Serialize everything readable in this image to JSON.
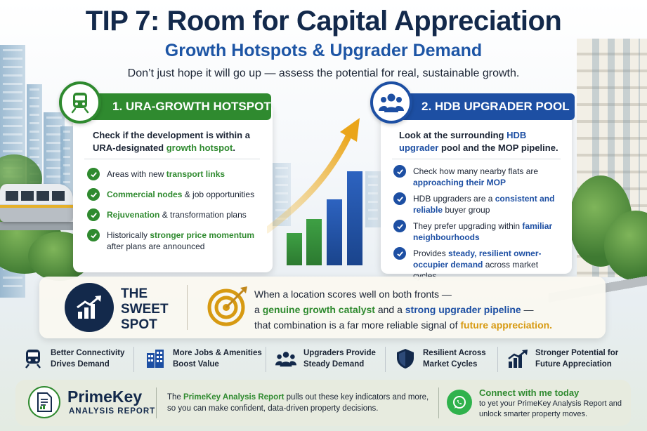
{
  "header": {
    "title": "TIP 7: Room for Capital Appreciation",
    "subtitle": "Growth Hotspots & Upgrader Demand",
    "tagline": "Don’t just hope it will go up — assess the potential for real, sustainable growth."
  },
  "left_card": {
    "icon": "train-icon",
    "heading": "1. URA-GROWTH HOTSPOT",
    "lead_plain": "Check if the development is within a URA-designated ",
    "lead_highlight": "growth hotspot",
    "lead_end": ".",
    "items": [
      {
        "pre": "Areas with new ",
        "hl": "transport links",
        "post": ""
      },
      {
        "pre": "",
        "hl": "Commercial nodes",
        "post": " & job opportunities"
      },
      {
        "pre": "",
        "hl": "Rejuvenation",
        "post": " & transformation plans"
      },
      {
        "pre": "Historically ",
        "hl": "stronger price momentum",
        "post": " after plans are announced"
      }
    ]
  },
  "right_card": {
    "icon": "people-group-icon",
    "heading": "2. HDB UPGRADER POOL",
    "lead_plain": "Look at the surrounding ",
    "lead_highlight": "HDB upgrader",
    "lead_end": " pool and the MOP pipeline.",
    "items": [
      {
        "pre": "Check how many nearby flats are ",
        "hl": "approaching their MOP",
        "post": ""
      },
      {
        "pre": "HDB upgraders are a ",
        "hl": "consistent and reliable",
        "post": " buyer group"
      },
      {
        "pre": "They prefer upgrading within ",
        "hl": "familiar neighbourhoods",
        "post": ""
      },
      {
        "pre": "Provides ",
        "hl": "steady, resilient owner-occupier demand",
        "post": " across market cycles"
      }
    ]
  },
  "sweet_spot": {
    "icon": "rising-chart-icon",
    "title": "THE SWEET SPOT",
    "target_icon": "target-arrow-icon",
    "line1": "When a location scores well on both fronts —",
    "line2_pre": "a ",
    "line2_hl1": "genuine growth catalyst",
    "line2_mid": " and a ",
    "line2_hl2": "strong upgrader pipeline",
    "line2_post": " —",
    "line3_pre": "that combination is a far more reliable signal of ",
    "line3_hl": "future appreciation."
  },
  "features": [
    {
      "icon": "train-icon",
      "line1": "Better Connectivity",
      "line2": "Drives Demand"
    },
    {
      "icon": "building-icon",
      "line1": "More Jobs & Amenities",
      "line2": "Boost Value"
    },
    {
      "icon": "people-group-icon",
      "line1": "Upgraders Provide",
      "line2": "Steady Demand"
    },
    {
      "icon": "shield-icon",
      "line1": "Resilient Across",
      "line2": "Market Cycles"
    },
    {
      "icon": "growth-chart-icon",
      "line1": "Stronger Potential for",
      "line2": "Future Appreciation"
    }
  ],
  "footer": {
    "report_icon": "report-document-icon",
    "brand": "PrimeKey",
    "brand_sub": "ANALYSIS REPORT",
    "text_pre": "The ",
    "text_hl": "PrimeKey Analysis Report",
    "text_post": " pulls out these key indicators and more, so you can make confident, data-driven property decisions.",
    "whatsapp_icon": "whatsapp-icon",
    "cta_title": "Connect with me today",
    "cta_text": "to yet your PrimeKey Analysis Report and unlock smarter property moves."
  },
  "colors": {
    "navy": "#13294b",
    "blue": "#1d4fa3",
    "green": "#2f8a2f",
    "gold": "#d79a12",
    "whatsapp": "#2fb24c"
  }
}
